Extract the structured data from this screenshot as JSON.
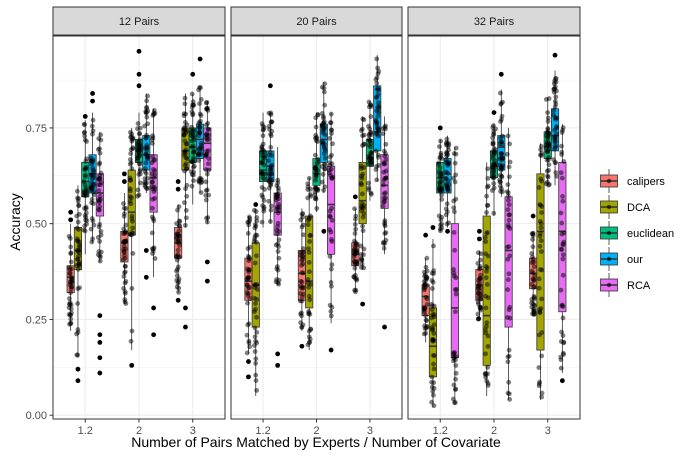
{
  "chart_data": {
    "type": "box",
    "ylabel": "Accuracy",
    "xlabel": "Number of Pairs Matched by Experts / Number of Covariate",
    "ylim": [
      -0.01,
      0.99
    ],
    "yticks": [
      "0.00",
      "0.25",
      "0.50",
      "0.75"
    ],
    "ytick_values": [
      0,
      0.25,
      0.5,
      0.75
    ],
    "categories": [
      "1.2",
      "2",
      "3"
    ],
    "grid": true,
    "legend_position": "right",
    "series": [
      {
        "name": "calipers",
        "color": "#F8766D"
      },
      {
        "name": "DCA",
        "color": "#A3A500"
      },
      {
        "name": "euclidean",
        "color": "#00BF7D"
      },
      {
        "name": "our",
        "color": "#00B0F6"
      },
      {
        "name": "RCA",
        "color": "#E76BF3"
      }
    ],
    "panels": [
      {
        "title": "12 Pairs",
        "boxes": [
          [
            {
              "wl": 0.22,
              "q1": 0.32,
              "med": 0.36,
              "q3": 0.39,
              "wh": 0.5,
              "out": [
                0.53,
                0.51
              ]
            },
            {
              "wl": 0.15,
              "q1": 0.38,
              "med": 0.43,
              "q3": 0.49,
              "wh": 0.6,
              "out": [
                0.09,
                0.12
              ]
            },
            {
              "wl": 0.42,
              "q1": 0.57,
              "med": 0.61,
              "q3": 0.66,
              "wh": 0.77,
              "out": [
                0.78
              ]
            },
            {
              "wl": 0.45,
              "q1": 0.58,
              "med": 0.63,
              "q3": 0.68,
              "wh": 0.79,
              "out": [
                0.82,
                0.84
              ]
            },
            {
              "wl": 0.4,
              "q1": 0.52,
              "med": 0.58,
              "q3": 0.63,
              "wh": 0.74,
              "out": [
                0.26,
                0.21,
                0.19,
                0.15,
                0.11
              ]
            }
          ],
          [
            {
              "wl": 0.29,
              "q1": 0.4,
              "med": 0.45,
              "q3": 0.48,
              "wh": 0.58,
              "out": [
                0.61,
                0.63
              ]
            },
            {
              "wl": 0.17,
              "q1": 0.47,
              "med": 0.53,
              "q3": 0.64,
              "wh": 0.75,
              "out": [
                0.13
              ]
            },
            {
              "wl": 0.57,
              "q1": 0.66,
              "med": 0.69,
              "q3": 0.72,
              "wh": 0.79,
              "out": [
                0.86,
                0.89,
                0.95
              ]
            },
            {
              "wl": 0.58,
              "q1": 0.64,
              "med": 0.68,
              "q3": 0.73,
              "wh": 0.84,
              "out": [
                0.43,
                0.36
              ]
            },
            {
              "wl": 0.36,
              "q1": 0.53,
              "med": 0.62,
              "q3": 0.68,
              "wh": 0.8,
              "out": [
                0.28,
                0.21
              ]
            }
          ],
          [
            {
              "wl": 0.32,
              "q1": 0.41,
              "med": 0.45,
              "q3": 0.49,
              "wh": 0.55,
              "out": [
                0.59,
                0.61,
                0.3
              ]
            },
            {
              "wl": 0.49,
              "q1": 0.64,
              "med": 0.69,
              "q3": 0.75,
              "wh": 0.84,
              "out": [
                0.28,
                0.23
              ]
            },
            {
              "wl": 0.55,
              "q1": 0.66,
              "med": 0.7,
              "q3": 0.75,
              "wh": 0.84,
              "out": [
                0.89
              ]
            },
            {
              "wl": 0.58,
              "q1": 0.67,
              "med": 0.72,
              "q3": 0.76,
              "wh": 0.86,
              "out": [
                0.93
              ]
            },
            {
              "wl": 0.5,
              "q1": 0.64,
              "med": 0.71,
              "q3": 0.75,
              "wh": 0.82,
              "out": [
                0.4,
                0.35
              ]
            }
          ]
        ]
      },
      {
        "title": "20 Pairs",
        "boxes": [
          [
            {
              "wl": 0.16,
              "q1": 0.3,
              "med": 0.35,
              "q3": 0.41,
              "wh": 0.52,
              "out": [
                0.1,
                0.14
              ]
            },
            {
              "wl": 0.05,
              "q1": 0.23,
              "med": 0.34,
              "q3": 0.45,
              "wh": 0.54,
              "out": [
                0.55
              ]
            },
            {
              "wl": 0.49,
              "q1": 0.61,
              "med": 0.64,
              "q3": 0.69,
              "wh": 0.79,
              "out": []
            },
            {
              "wl": 0.5,
              "q1": 0.61,
              "med": 0.65,
              "q3": 0.69,
              "wh": 0.79,
              "out": [
                0.86
              ]
            },
            {
              "wl": 0.34,
              "q1": 0.47,
              "med": 0.53,
              "q3": 0.58,
              "wh": 0.7,
              "out": [
                0.16,
                0.13
              ]
            }
          ],
          [
            {
              "wl": 0.22,
              "q1": 0.3,
              "med": 0.37,
              "q3": 0.43,
              "wh": 0.54,
              "out": [
                0.18
              ]
            },
            {
              "wl": 0.17,
              "q1": 0.28,
              "med": 0.35,
              "q3": 0.52,
              "wh": 0.62,
              "out": []
            },
            {
              "wl": 0.53,
              "q1": 0.6,
              "med": 0.63,
              "q3": 0.67,
              "wh": 0.79,
              "out": []
            },
            {
              "wl": 0.58,
              "q1": 0.66,
              "med": 0.72,
              "q3": 0.76,
              "wh": 0.87,
              "out": [
                0.48
              ]
            },
            {
              "wl": 0.24,
              "q1": 0.42,
              "med": 0.55,
              "q3": 0.65,
              "wh": 0.79,
              "out": [
                0.17
              ]
            }
          ],
          [
            {
              "wl": 0.32,
              "q1": 0.39,
              "med": 0.42,
              "q3": 0.45,
              "wh": 0.54,
              "out": [
                0.57
              ]
            },
            {
              "wl": 0.38,
              "q1": 0.5,
              "med": 0.56,
              "q3": 0.66,
              "wh": 0.78,
              "out": [
                0.29
              ]
            },
            {
              "wl": 0.56,
              "q1": 0.65,
              "med": 0.67,
              "q3": 0.72,
              "wh": 0.82,
              "out": []
            },
            {
              "wl": 0.61,
              "q1": 0.69,
              "med": 0.74,
              "q3": 0.86,
              "wh": 0.94,
              "out": []
            },
            {
              "wl": 0.42,
              "q1": 0.54,
              "med": 0.6,
              "q3": 0.68,
              "wh": 0.78,
              "out": [
                0.23
              ]
            }
          ]
        ]
      },
      {
        "title": "32 Pairs",
        "boxes": [
          [
            {
              "wl": 0.19,
              "q1": 0.26,
              "med": 0.31,
              "q3": 0.34,
              "wh": 0.41,
              "out": [
                0.47
              ]
            },
            {
              "wl": 0.02,
              "q1": 0.1,
              "med": 0.18,
              "q3": 0.28,
              "wh": 0.46,
              "out": [
                0.49
              ]
            },
            {
              "wl": 0.48,
              "q1": 0.58,
              "med": 0.62,
              "q3": 0.66,
              "wh": 0.72,
              "out": [
                0.75
              ]
            },
            {
              "wl": 0.49,
              "q1": 0.58,
              "med": 0.63,
              "q3": 0.67,
              "wh": 0.73,
              "out": [
                0.48
              ]
            },
            {
              "wl": 0.03,
              "q1": 0.15,
              "med": 0.28,
              "q3": 0.5,
              "wh": 0.7,
              "out": []
            }
          ],
          [
            {
              "wl": 0.25,
              "q1": 0.3,
              "med": 0.34,
              "q3": 0.38,
              "wh": 0.43,
              "out": [
                0.48,
                0.46
              ]
            },
            {
              "wl": 0.05,
              "q1": 0.13,
              "med": 0.26,
              "q3": 0.52,
              "wh": 0.66,
              "out": []
            },
            {
              "wl": 0.52,
              "q1": 0.62,
              "med": 0.65,
              "q3": 0.69,
              "wh": 0.76,
              "out": [
                0.79
              ]
            },
            {
              "wl": 0.57,
              "q1": 0.64,
              "med": 0.7,
              "q3": 0.73,
              "wh": 0.85,
              "out": [
                0.89
              ]
            },
            {
              "wl": 0.04,
              "q1": 0.23,
              "med": 0.43,
              "q3": 0.57,
              "wh": 0.75,
              "out": []
            }
          ],
          [
            {
              "wl": 0.26,
              "q1": 0.33,
              "med": 0.37,
              "q3": 0.41,
              "wh": 0.48,
              "out": [
                0.52
              ]
            },
            {
              "wl": 0.04,
              "q1": 0.17,
              "med": 0.48,
              "q3": 0.63,
              "wh": 0.71,
              "out": []
            },
            {
              "wl": 0.6,
              "q1": 0.67,
              "med": 0.7,
              "q3": 0.74,
              "wh": 0.83,
              "out": []
            },
            {
              "wl": 0.6,
              "q1": 0.69,
              "med": 0.73,
              "q3": 0.8,
              "wh": 0.9,
              "out": [
                0.94
              ]
            },
            {
              "wl": 0.11,
              "q1": 0.27,
              "med": 0.48,
              "q3": 0.66,
              "wh": 0.76,
              "out": [
                0.09
              ]
            }
          ]
        ]
      }
    ]
  }
}
